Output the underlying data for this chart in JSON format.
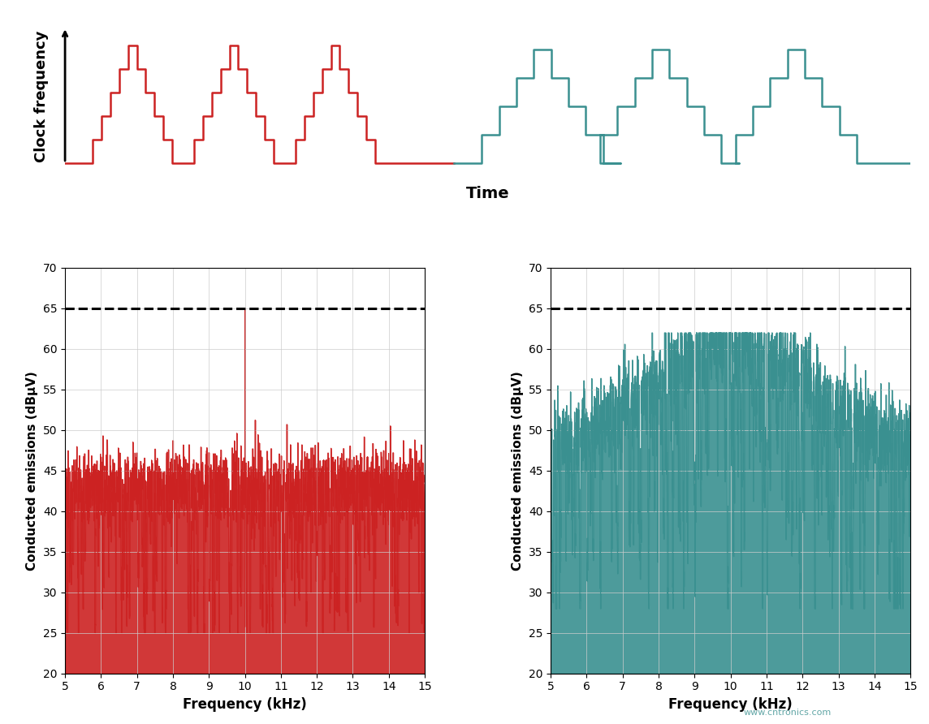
{
  "red_color": "#CC2222",
  "teal_color": "#3A9090",
  "background_color": "#ffffff",
  "ylabel_top": "Clock frequency",
  "xlabel_time": "Time",
  "ylabel_bottom": "Conducted emissions (dBμV)",
  "xlabel_freq": "Frequency (kHz)",
  "xlim": [
    5,
    15
  ],
  "ylim": [
    20,
    70
  ],
  "yticks": [
    20,
    25,
    30,
    35,
    40,
    45,
    50,
    55,
    60,
    65,
    70
  ],
  "xticks": [
    5,
    6,
    7,
    8,
    9,
    10,
    11,
    12,
    13,
    14,
    15
  ],
  "dashed_line_y": 65,
  "watermark": "www.cntronics.com",
  "red_centers": [
    0.085,
    0.205,
    0.325
  ],
  "red_hw": 0.052,
  "red_n_steps": 5,
  "red_amp": 0.88,
  "red_base": 0.06,
  "teal_centers": [
    0.575,
    0.715,
    0.875
  ],
  "teal_hw": 0.082,
  "teal_n_steps": 4,
  "teal_amp": 0.85,
  "teal_base": 0.06
}
